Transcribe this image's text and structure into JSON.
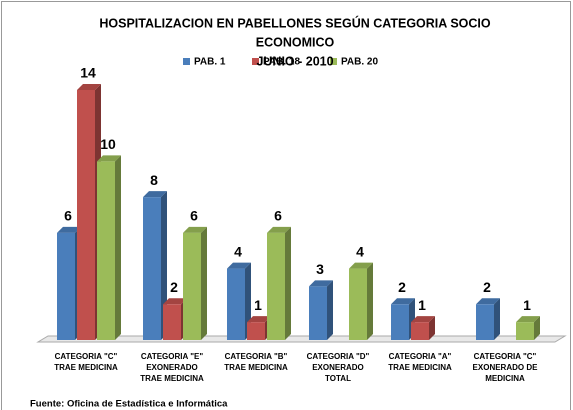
{
  "chart_data": {
    "type": "bar3d",
    "title": "HOSPITALIZACION EN PABELLONES SEGÚN CATEGORIA SOCIO",
    "title_line2": "ECONOMICO",
    "subtitle": "JUNIO - 2010",
    "categories": [
      [
        "CATEGORIA \"C\"",
        "TRAE MEDICINA"
      ],
      [
        "CATEGORIA \"E\"",
        "EXONERADO",
        "TRAE MEDICINA"
      ],
      [
        "CATEGORIA \"B\"",
        "TRAE MEDICINA"
      ],
      [
        "CATEGORIA \"D\"",
        "EXONERADO",
        "TOTAL"
      ],
      [
        "CATEGORIA \"A\"",
        "TRAE MEDICINA"
      ],
      [
        "CATEGORIA \"C\"",
        "EXONERADO DE",
        "MEDICINA"
      ]
    ],
    "series": [
      {
        "name": "PAB. 1",
        "color": "#4a7ebb",
        "values": [
          6,
          8,
          4,
          3,
          2,
          2
        ]
      },
      {
        "name": "PAB. 18",
        "color": "#c0504d",
        "values": [
          14,
          2,
          1,
          null,
          1,
          null
        ]
      },
      {
        "name": "PAB. 20",
        "color": "#9bbb59",
        "values": [
          10,
          6,
          6,
          4,
          null,
          1
        ]
      }
    ],
    "source": "Fuente: Oficina de Estadística e Informática"
  }
}
